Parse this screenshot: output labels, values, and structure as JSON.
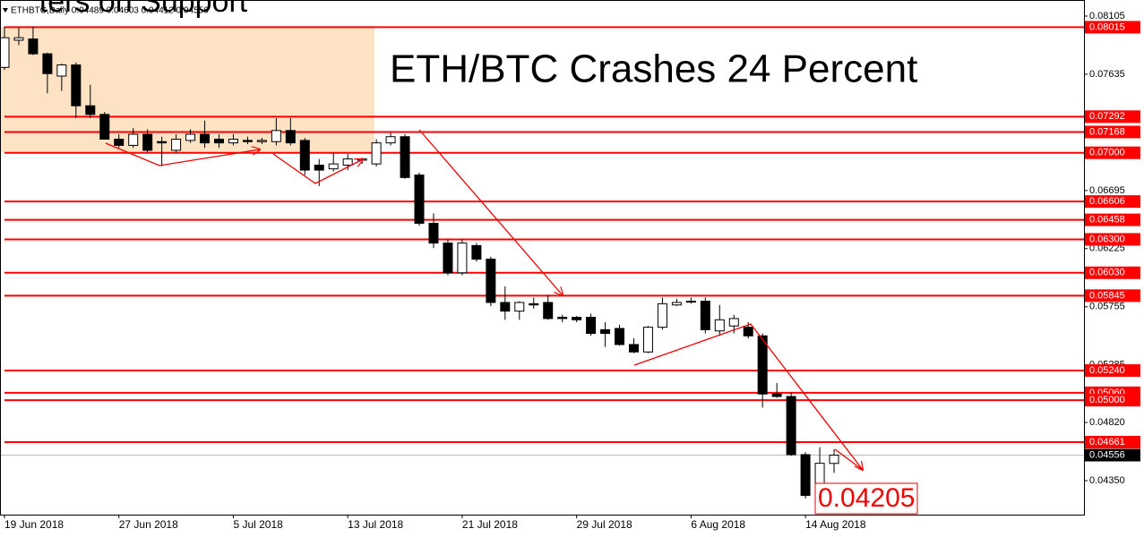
{
  "chart_data": {
    "type": "candlestick",
    "header_title": "ters on Support",
    "info": "ETHBTC,Daily 0.04489 0.04603 0.04412 0.04556",
    "title": "ETH/BTC Crashes 24 Percent",
    "annotation": "0.04205",
    "categories": [
      "19 Jun 2018",
      null,
      null,
      null,
      null,
      null,
      null,
      null,
      "27 Jun 2018",
      null,
      null,
      null,
      null,
      null,
      null,
      null,
      "5 Jul 2018",
      null,
      null,
      null,
      null,
      null,
      null,
      null,
      "13 Jul 2018",
      null,
      null,
      null,
      null,
      null,
      null,
      null,
      "21 Jul 2018",
      null,
      null,
      null,
      null,
      null,
      null,
      null,
      "29 Jul 2018",
      null,
      null,
      null,
      null,
      null,
      null,
      null,
      "6 Aug 2018",
      null,
      null,
      null,
      null,
      null,
      null,
      null,
      "14 Aug 2018",
      null,
      null
    ],
    "open": [
      0.0769,
      0.0791,
      0.0792,
      0.078,
      0.0762,
      0.0771,
      0.0738,
      0.0731,
      0.0711,
      0.0706,
      0.0715,
      0.0709,
      0.0702,
      0.071,
      0.0715,
      0.0711,
      0.0708,
      0.071,
      0.0709,
      0.0709,
      0.0718,
      0.071,
      0.069,
      0.0687,
      0.069,
      0.0694,
      0.0691,
      0.0708,
      0.0713,
      0.0682,
      0.0643,
      0.0627,
      0.0603,
      0.0625,
      0.0614,
      0.0579,
      0.0572,
      0.0578,
      0.0579,
      0.0567,
      0.0567,
      0.0567,
      0.0557,
      0.0558,
      0.0545,
      0.0539,
      0.0559,
      0.0577,
      0.058,
      0.058,
      0.0556,
      0.056,
      0.0559,
      0.0552,
      0.0505,
      0.0503,
      0.0456,
      0.0425,
      0.04489
    ],
    "high": [
      0.0802,
      0.0801,
      0.0802,
      0.0781,
      0.0772,
      0.0773,
      0.0755,
      0.0733,
      0.0715,
      0.072,
      0.0719,
      0.0713,
      0.0715,
      0.0719,
      0.0726,
      0.0715,
      0.0715,
      0.0713,
      0.0712,
      0.0728,
      0.0728,
      0.0712,
      0.0695,
      0.07,
      0.0699,
      0.0696,
      0.0711,
      0.0716,
      0.0715,
      0.0684,
      0.0651,
      0.063,
      0.063,
      0.0627,
      0.0616,
      0.0592,
      0.058,
      0.0583,
      0.0585,
      0.0569,
      0.0568,
      0.057,
      0.0563,
      0.0561,
      0.055,
      0.056,
      0.0583,
      0.0582,
      0.0583,
      0.0583,
      0.0577,
      0.0569,
      0.0563,
      0.0554,
      0.0514,
      0.0506,
      0.0458,
      0.0462,
      0.04603
    ],
    "low": [
      0.0767,
      0.0787,
      0.0779,
      0.0748,
      0.075,
      0.0728,
      0.0728,
      0.0711,
      0.0704,
      0.0704,
      0.07,
      0.0689,
      0.07,
      0.0708,
      0.0704,
      0.0704,
      0.0706,
      0.0707,
      0.0707,
      0.0706,
      0.0706,
      0.0682,
      0.0673,
      0.0685,
      0.0686,
      0.0691,
      0.0689,
      0.0706,
      0.0679,
      0.0641,
      0.0623,
      0.0601,
      0.0601,
      0.0612,
      0.0576,
      0.0565,
      0.0565,
      0.0574,
      0.0565,
      0.0563,
      0.0563,
      0.0552,
      0.0543,
      0.0544,
      0.0538,
      0.0538,
      0.0557,
      0.0576,
      0.0578,
      0.0554,
      0.0552,
      0.0554,
      0.055,
      0.0494,
      0.0502,
      0.0455,
      0.04205,
      0.0422,
      0.04412
    ],
    "close": [
      0.0793,
      0.0793,
      0.078,
      0.0764,
      0.0771,
      0.0738,
      0.0731,
      0.0711,
      0.0706,
      0.0715,
      0.0702,
      0.0708,
      0.0711,
      0.0715,
      0.0708,
      0.0708,
      0.0711,
      0.0709,
      0.071,
      0.0718,
      0.0708,
      0.0686,
      0.0686,
      0.0691,
      0.0695,
      0.0695,
      0.0708,
      0.0713,
      0.068,
      0.0643,
      0.0627,
      0.0603,
      0.0627,
      0.0614,
      0.0579,
      0.0572,
      0.0579,
      0.0577,
      0.0566,
      0.0566,
      0.0565,
      0.0554,
      0.0554,
      0.0545,
      0.0539,
      0.0559,
      0.0578,
      0.0579,
      0.058,
      0.0557,
      0.0565,
      0.0566,
      0.0552,
      0.0505,
      0.0503,
      0.0456,
      0.0423,
      0.0449,
      0.04556
    ],
    "up_color": "#ffffff",
    "down_color": "#000000",
    "levels": [
      0.08015,
      0.07292,
      0.07168,
      {
        "value": 0.07,
        "label": "0.07000"
      },
      0.06606,
      0.06458,
      {
        "value": 0.063,
        "label": "0.06300"
      },
      {
        "value": 0.0603,
        "label": "0.06030"
      },
      0.05845,
      {
        "value": 0.0524,
        "label": "0.05240"
      },
      {
        "value": 0.0506,
        "label": "0.05060"
      },
      {
        "value": 0.05,
        "label": "0.05000"
      },
      0.04661
    ],
    "level_color": "#ff0000",
    "current_price": 0.04556,
    "ylim": [
      0.04075,
      0.08235
    ],
    "yticks": [
      0.08105,
      0.07635,
      0.06695,
      0.06225,
      0.05755,
      0.05285,
      {
        "value": 0.0482,
        "label": "0.04820"
      },
      {
        "value": 0.0435,
        "label": "0.04350"
      }
    ],
    "grid": false
  }
}
